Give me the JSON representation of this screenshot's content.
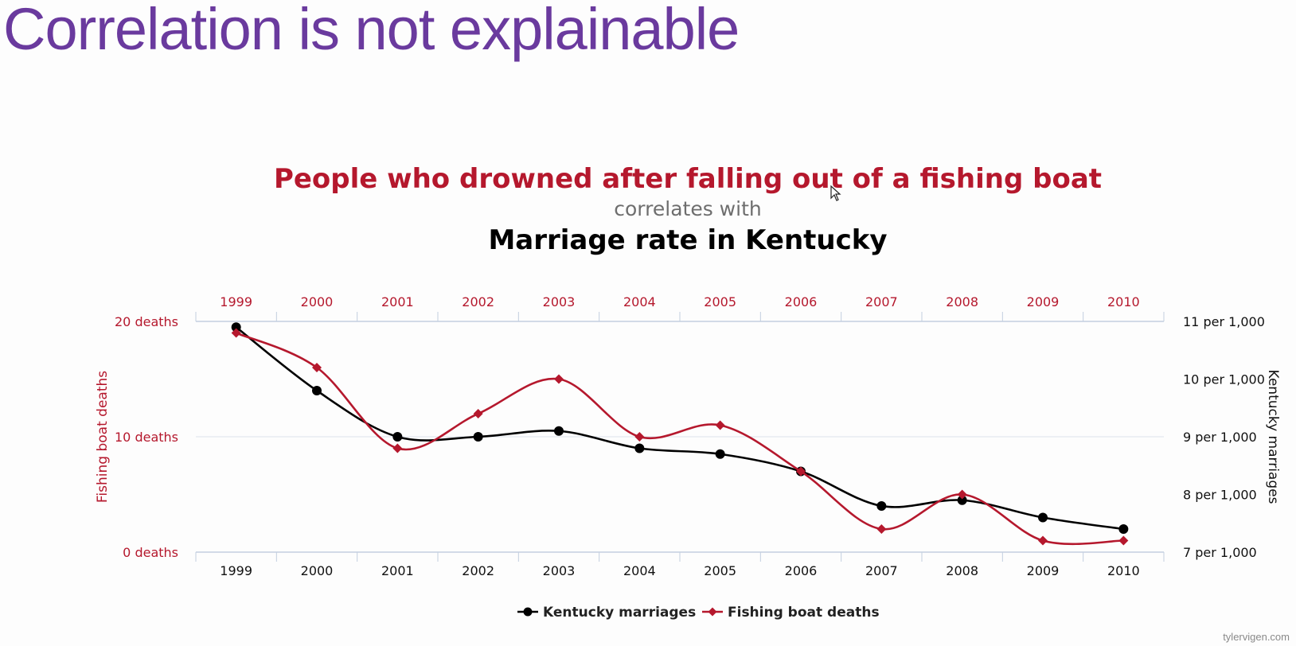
{
  "slide": {
    "title": "Correlation is not explainable",
    "credit": "tylervigen.com"
  },
  "chart_data": {
    "type": "line",
    "title": "People who drowned after falling out of a fishing boat",
    "connector": "correlates with",
    "subtitle": "Marriage rate in Kentucky",
    "categories": [
      "1999",
      "2000",
      "2001",
      "2002",
      "2003",
      "2004",
      "2005",
      "2006",
      "2007",
      "2008",
      "2009",
      "2010"
    ],
    "left_axis": {
      "label": "Fishing boat deaths",
      "ticks": [
        "0 deaths",
        "10 deaths",
        "20 deaths"
      ],
      "tick_values": [
        0,
        10,
        20
      ],
      "range": [
        0,
        20
      ]
    },
    "right_axis": {
      "label": "Kentucky marriages",
      "ticks": [
        "7 per 1,000",
        "8 per 1,000",
        "9 per 1,000",
        "10 per 1,000",
        "11 per 1,000"
      ],
      "tick_values": [
        7,
        8,
        9,
        10,
        11
      ],
      "range": [
        7,
        11
      ]
    },
    "series": [
      {
        "name": "Kentucky marriages",
        "axis": "right",
        "color": "#000000",
        "marker": "circle",
        "values": [
          10.9,
          9.8,
          9.0,
          9.0,
          9.1,
          8.8,
          8.7,
          8.4,
          7.8,
          7.9,
          7.6,
          7.4
        ]
      },
      {
        "name": "Fishing boat deaths",
        "axis": "left",
        "color": "#b5182d",
        "marker": "diamond",
        "values": [
          19,
          16,
          9,
          12,
          15,
          10,
          11,
          7,
          2,
          5,
          1,
          1
        ]
      }
    ],
    "grid": true,
    "legend": "bottom-center"
  }
}
